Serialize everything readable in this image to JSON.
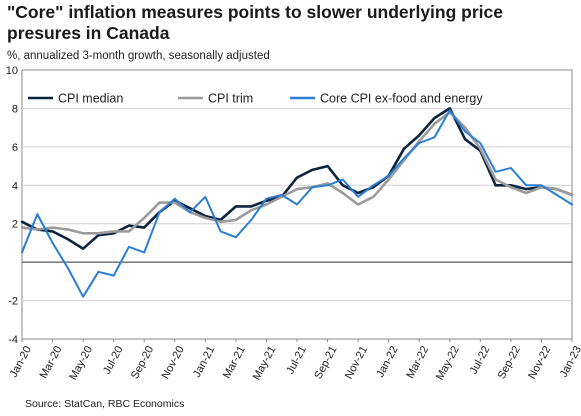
{
  "chart_data": {
    "type": "line",
    "title": "\"Core\" inflation measures points to slower underlying price presures in Canada",
    "subtitle": "%, annualized 3-month growth, seasonally adjusted",
    "source": "Source: StatCan, RBC Economics",
    "ylim": [
      -4,
      10
    ],
    "yticks": [
      "-4",
      "-2",
      "",
      "2",
      "4",
      "6",
      "8",
      "10"
    ],
    "ytick_values": [
      -4,
      -2,
      0,
      2,
      4,
      6,
      8,
      10
    ],
    "xlim": [
      "2020-01",
      "2023-01"
    ],
    "xtick_labels": [
      "Jan-20",
      "Mar-20",
      "May-20",
      "Jul-20",
      "Sep-20",
      "Nov-20",
      "Jan-21",
      "Mar-21",
      "May-21",
      "Jul-21",
      "Sep-21",
      "Nov-21",
      "Jan-22",
      "Mar-22",
      "May-22",
      "Jul-22",
      "Sep-22",
      "Nov-22",
      "Jan-23"
    ],
    "grid": true,
    "legend_position": "top",
    "x": [
      "2020-01",
      "2020-02",
      "2020-03",
      "2020-04",
      "2020-05",
      "2020-06",
      "2020-07",
      "2020-08",
      "2020-09",
      "2020-10",
      "2020-11",
      "2020-12",
      "2021-01",
      "2021-02",
      "2021-03",
      "2021-04",
      "2021-05",
      "2021-06",
      "2021-07",
      "2021-08",
      "2021-09",
      "2021-10",
      "2021-11",
      "2021-12",
      "2022-01",
      "2022-02",
      "2022-03",
      "2022-04",
      "2022-05",
      "2022-06",
      "2022-07",
      "2022-08",
      "2022-09",
      "2022-10",
      "2022-11",
      "2022-12",
      "2023-01"
    ],
    "series": [
      {
        "name": "CPI median",
        "color": "#0c2340",
        "width": 2.6,
        "values": [
          2.1,
          1.7,
          1.6,
          1.2,
          0.7,
          1.4,
          1.5,
          1.9,
          1.8,
          2.6,
          3.2,
          2.8,
          2.4,
          2.2,
          2.9,
          2.9,
          3.2,
          3.4,
          4.4,
          4.8,
          5.0,
          4.0,
          3.6,
          3.9,
          4.5,
          5.9,
          6.6,
          7.5,
          8.0,
          6.4,
          5.8,
          4.0,
          4.0,
          3.8,
          3.9,
          3.8,
          3.5
        ]
      },
      {
        "name": "CPI trim",
        "color": "#9b9b9b",
        "width": 2.6,
        "values": [
          1.8,
          1.7,
          1.8,
          1.7,
          1.5,
          1.5,
          1.6,
          1.6,
          2.3,
          3.1,
          3.1,
          2.6,
          2.3,
          2.1,
          2.2,
          2.7,
          3.0,
          3.4,
          3.8,
          3.9,
          4.1,
          3.6,
          3.0,
          3.4,
          4.3,
          5.3,
          6.3,
          7.2,
          7.8,
          7.0,
          5.9,
          4.3,
          3.9,
          3.6,
          3.9,
          3.8,
          3.5
        ]
      },
      {
        "name": "Core CPI ex-food and energy",
        "color": "#2a7fd4",
        "width": 2.0,
        "values": [
          0.5,
          2.5,
          1.0,
          -0.3,
          -1.8,
          -0.5,
          -0.7,
          0.8,
          0.5,
          2.6,
          3.3,
          2.6,
          3.4,
          1.6,
          1.3,
          2.2,
          3.3,
          3.5,
          3.0,
          3.9,
          4.0,
          4.3,
          3.4,
          4.0,
          4.5,
          5.4,
          6.2,
          6.5,
          7.9,
          6.8,
          6.2,
          4.7,
          4.9,
          4.0,
          4.0,
          3.5,
          3.0
        ]
      }
    ]
  }
}
